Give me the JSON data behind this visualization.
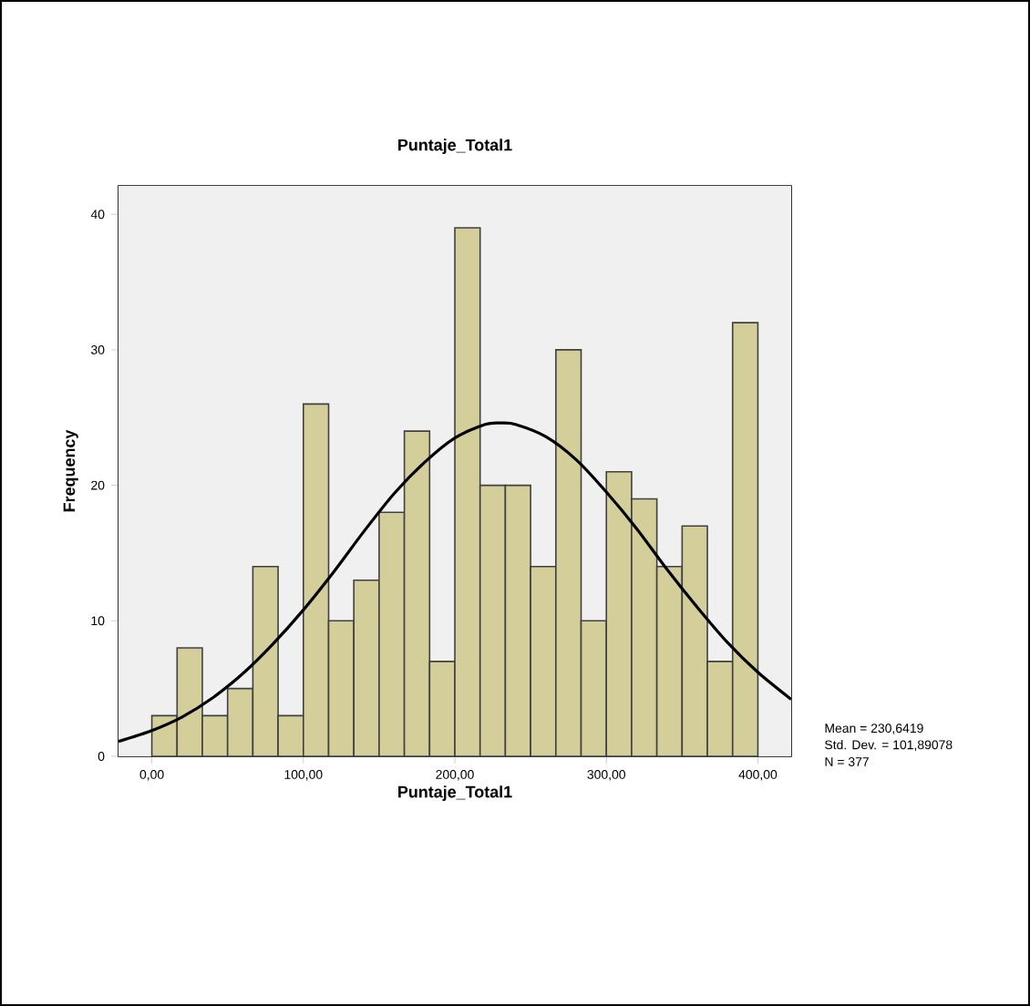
{
  "chart_data": {
    "type": "histogram",
    "title": "Puntaje_Total1",
    "xlabel": "Puntaje_Total1",
    "ylabel": "Frequency",
    "series": [
      {
        "color": "#d3ce9a",
        "bins": [
          0,
          16.67,
          33.33,
          50,
          66.67,
          83.33,
          100,
          116.67,
          133.33,
          150,
          166.67,
          183.33,
          200,
          216.67,
          233.33,
          250,
          266.67,
          283.33,
          300,
          316.67,
          333.33,
          350,
          366.67,
          383.33,
          400
        ],
        "values": [
          3,
          8,
          3,
          5,
          14,
          3,
          26,
          10,
          13,
          18,
          24,
          7,
          39,
          20,
          20,
          14,
          30,
          10,
          21,
          19,
          14,
          17,
          7,
          32
        ]
      },
      {
        "type": "line",
        "color": "#000000",
        "x": [
          -22,
          0,
          20,
          40,
          60,
          80,
          100,
          120,
          140,
          160,
          180,
          200,
          220,
          230.6,
          240,
          260,
          280,
          300,
          320,
          340,
          360,
          380,
          400,
          422
        ],
        "values": [
          1.1,
          1.9,
          2.9,
          4.3,
          6.1,
          8.3,
          10.8,
          13.6,
          16.6,
          19.4,
          21.7,
          23.5,
          24.5,
          24.6,
          24.5,
          23.6,
          21.9,
          19.5,
          16.8,
          13.8,
          11,
          8.4,
          6.2,
          4.2
        ]
      }
    ],
    "xlim": [
      -22,
      422
    ],
    "ylim": [
      0,
      42.1
    ],
    "xticks": [
      {
        "value": 0,
        "label": "0,00"
      },
      {
        "value": 100,
        "label": "100,00"
      },
      {
        "value": 200,
        "label": "200,00"
      },
      {
        "value": 300,
        "label": "300,00"
      },
      {
        "value": 400,
        "label": "400,00"
      }
    ],
    "yticks": [
      0,
      10,
      20,
      30,
      40
    ],
    "annotations": [
      "Mean = 230,6419",
      "Std. Dev. = 101,89078",
      "N = 377"
    ]
  }
}
